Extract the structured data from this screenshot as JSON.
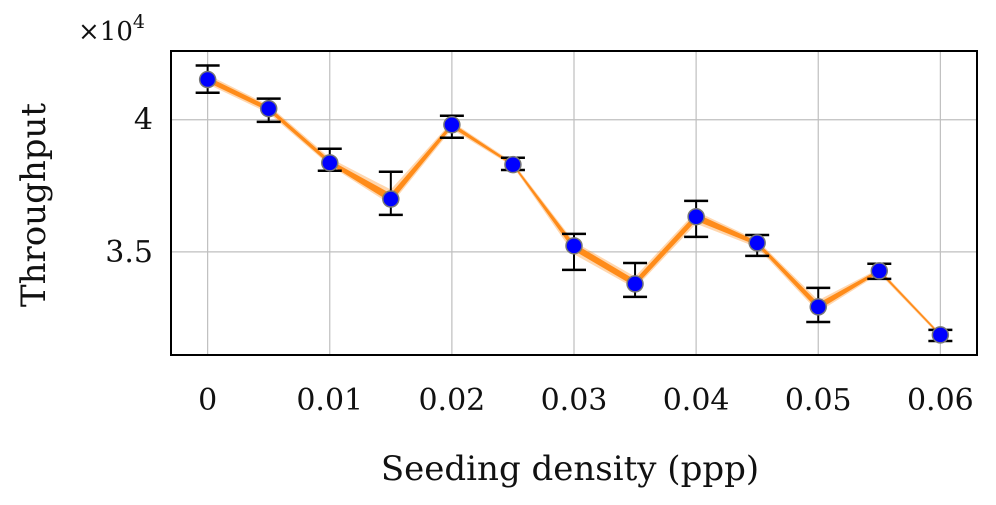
{
  "chart_data": {
    "type": "line",
    "title": "",
    "xlabel": "Seeding density (ppp)",
    "ylabel": "Throughput",
    "y_multiplier_label": "×10",
    "y_multiplier_exp": "4",
    "xlim": [
      -0.003,
      0.063
    ],
    "ylim": [
      3.11,
      4.26
    ],
    "grid": true,
    "x_ticks": [
      0,
      0.01,
      0.02,
      0.03,
      0.04,
      0.05,
      0.06
    ],
    "x_tick_labels": [
      "0",
      "0.01",
      "0.02",
      "0.03",
      "0.04",
      "0.05",
      "0.06"
    ],
    "y_ticks": [
      3.5,
      4
    ],
    "y_tick_labels": [
      "3.5",
      "4"
    ],
    "colors": {
      "marker": "#0000ff",
      "band": "#ff8c1a",
      "error_bar": "#000000",
      "grid": "#bfbfbf"
    },
    "series": [
      {
        "x": [
          0,
          0.005,
          0.01,
          0.015,
          0.02,
          0.025,
          0.03,
          0.035,
          0.04,
          0.045,
          0.05,
          0.055,
          0.06
        ],
        "y": [
          4.152,
          4.042,
          3.837,
          3.7,
          3.981,
          3.83,
          3.523,
          3.379,
          3.633,
          3.534,
          3.292,
          3.428,
          3.186
        ],
        "err_low": [
          4.102,
          3.992,
          3.807,
          3.64,
          3.932,
          3.81,
          3.432,
          3.33,
          3.557,
          3.485,
          3.235,
          3.398,
          3.163
        ],
        "err_high": [
          4.205,
          4.08,
          3.89,
          3.803,
          4.015,
          3.856,
          3.568,
          3.458,
          3.693,
          3.564,
          3.364,
          3.455,
          3.205
        ]
      }
    ]
  }
}
